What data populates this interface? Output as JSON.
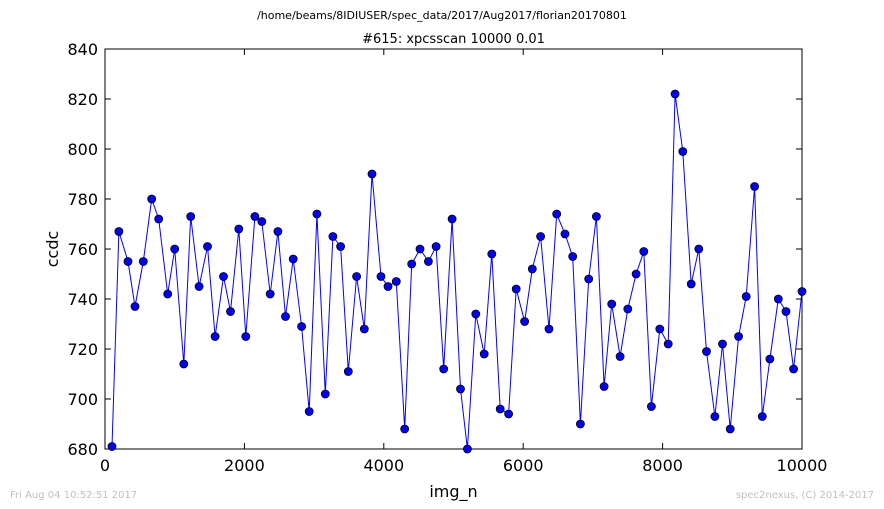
{
  "header": {
    "path": "/home/beams/8IDIUSER/spec_data/2017/Aug2017/florian20170801"
  },
  "footer": {
    "timestamp": "Fri Aug 04 10:52:51 2017",
    "credit": "spec2nexus, (C) 2014-2017"
  },
  "chart_data": {
    "type": "line",
    "title": "#615: xpcsscan 10000 0.01",
    "xlabel": "img_n",
    "ylabel": "ccdc",
    "xlim": [
      0,
      10000
    ],
    "ylim": [
      680,
      840
    ],
    "xticks": [
      0,
      2000,
      4000,
      6000,
      8000,
      10000
    ],
    "yticks": [
      680,
      700,
      720,
      740,
      760,
      780,
      800,
      820,
      840
    ],
    "grid": false,
    "line_color": "#0000ff",
    "marker_color": "#0000ff",
    "series": [
      {
        "x": [
          100,
          200,
          330,
          430,
          550,
          670,
          770,
          900,
          1000,
          1130,
          1230,
          1350,
          1470,
          1580,
          1700,
          1800,
          1920,
          2020,
          2150,
          2250,
          2370,
          2480,
          2590,
          2700,
          2820,
          2930,
          3040,
          3160,
          3270,
          3380,
          3490,
          3610,
          3720,
          3830,
          3960,
          4060,
          4180,
          4300,
          4400,
          4520,
          4640,
          4750,
          4860,
          4980,
          5100,
          5200,
          5320,
          5440,
          5550,
          5670,
          5790,
          5900,
          6020,
          6130,
          6250,
          6370,
          6480,
          6600,
          6710,
          6820,
          6940,
          7050,
          7160,
          7270,
          7390,
          7500,
          7620,
          7730,
          7840,
          7960,
          8080,
          8180,
          8290,
          8410,
          8520,
          8630,
          8750,
          8860,
          8970,
          9090,
          9200,
          9320,
          9430,
          9540,
          9660,
          9770,
          9880,
          10000
        ],
        "y": [
          681,
          767,
          755,
          737,
          755,
          780,
          772,
          742,
          760,
          714,
          773,
          745,
          761,
          725,
          749,
          735,
          768,
          725,
          773,
          771,
          742,
          767,
          733,
          756,
          729,
          695,
          774,
          702,
          765,
          761,
          711,
          749,
          728,
          790,
          749,
          745,
          747,
          688,
          754,
          760,
          755,
          761,
          712,
          772,
          704,
          680,
          734,
          718,
          758,
          696,
          694,
          744,
          731,
          752,
          765,
          728,
          774,
          766,
          757,
          690,
          748,
          773,
          705,
          738,
          717,
          736,
          750,
          759,
          697,
          728,
          722,
          822,
          799,
          746,
          760,
          719,
          693,
          722,
          688,
          725,
          741,
          785,
          693,
          716,
          740,
          735,
          712,
          743
        ]
      }
    ]
  }
}
